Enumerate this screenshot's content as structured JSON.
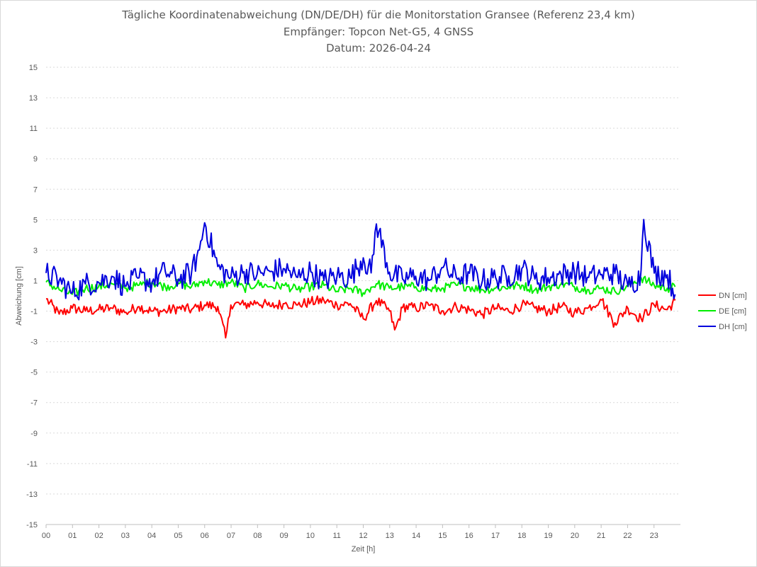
{
  "title_line1": "Tägliche Koordinatenabweichung (DN/DE/DH) für die Monitorstation Gransee (Referenz 23,4 km)",
  "title_line2": "Empfänger: Topcon Net-G5, 4 GNSS",
  "title_line3": "Datum: 2026-04-24",
  "chart_data": {
    "type": "line",
    "title": "Tägliche Koordinatenabweichung (DN/DE/DH) für die Monitorstation Gransee (Referenz 23,4 km)",
    "subtitle": [
      "Empfänger: Topcon Net-G5, 4 GNSS",
      "Datum: 2026-04-24"
    ],
    "xlabel": "Zeit [h]",
    "ylabel": "Abweichung [cm]",
    "ylim": [
      -15,
      15
    ],
    "yticks": [
      15,
      13,
      11,
      9,
      7,
      5,
      3,
      1,
      -1,
      -3,
      -5,
      -7,
      -9,
      -11,
      -13,
      -15
    ],
    "xlim": [
      0,
      24
    ],
    "xticks": [
      "00",
      "01",
      "02",
      "03",
      "04",
      "05",
      "06",
      "07",
      "08",
      "09",
      "10",
      "11",
      "12",
      "13",
      "14",
      "15",
      "16",
      "17",
      "18",
      "19",
      "20",
      "21",
      "22",
      "23"
    ],
    "grid": true,
    "legend_position": "right",
    "series": [
      {
        "name": "DN [cm]",
        "color": "#ff0000",
        "x": [
          0.0,
          0.5,
          1.0,
          1.5,
          2.0,
          2.5,
          3.0,
          3.5,
          4.0,
          4.5,
          5.0,
          5.5,
          6.0,
          6.5,
          6.8,
          7.0,
          7.5,
          8.0,
          8.5,
          9.0,
          9.5,
          10.0,
          10.5,
          11.0,
          11.5,
          12.0,
          12.5,
          13.0,
          13.2,
          13.5,
          14.0,
          14.5,
          15.0,
          15.5,
          16.0,
          16.5,
          17.0,
          17.5,
          18.0,
          18.5,
          19.0,
          19.5,
          20.0,
          20.5,
          21.0,
          21.5,
          22.0,
          22.5,
          23.0,
          23.5,
          23.8
        ],
        "y": [
          -0.2,
          -1.2,
          -0.8,
          -1.0,
          -0.9,
          -0.8,
          -1.1,
          -0.7,
          -1.0,
          -1.0,
          -0.8,
          -0.9,
          -0.6,
          -0.7,
          -2.8,
          -0.5,
          -0.6,
          -0.4,
          -0.7,
          -0.5,
          -0.6,
          -0.4,
          -0.3,
          -0.6,
          -0.5,
          -1.5,
          -0.3,
          -1.0,
          -2.3,
          -0.7,
          -0.8,
          -0.6,
          -1.0,
          -0.7,
          -0.9,
          -1.2,
          -0.8,
          -1.0,
          -0.6,
          -0.8,
          -1.0,
          -0.7,
          -1.1,
          -0.8,
          -0.2,
          -1.8,
          -0.8,
          -1.5,
          -0.6,
          -0.9,
          -0.3
        ]
      },
      {
        "name": "DE [cm]",
        "color": "#00ee00",
        "x": [
          0.0,
          0.5,
          1.0,
          1.5,
          2.0,
          2.5,
          3.0,
          3.5,
          4.0,
          4.5,
          5.0,
          5.5,
          6.0,
          6.5,
          7.0,
          7.5,
          8.0,
          8.5,
          9.0,
          9.5,
          10.0,
          10.5,
          11.0,
          11.5,
          12.0,
          12.5,
          13.0,
          13.5,
          14.0,
          14.5,
          15.0,
          15.5,
          16.0,
          16.5,
          17.0,
          17.5,
          18.0,
          18.5,
          19.0,
          19.5,
          20.0,
          20.5,
          21.0,
          21.5,
          22.0,
          22.5,
          23.0,
          23.5,
          23.8
        ],
        "y": [
          0.9,
          0.4,
          0.1,
          0.5,
          0.6,
          0.8,
          0.5,
          0.7,
          0.9,
          0.6,
          0.8,
          0.6,
          1.0,
          0.7,
          0.9,
          0.5,
          0.8,
          0.6,
          0.7,
          0.4,
          0.6,
          0.7,
          0.3,
          0.5,
          0.2,
          0.8,
          0.5,
          0.6,
          0.6,
          0.4,
          0.5,
          0.7,
          0.6,
          0.4,
          0.5,
          0.6,
          0.7,
          0.4,
          0.6,
          0.8,
          0.6,
          0.4,
          0.5,
          0.3,
          0.6,
          1.2,
          0.7,
          0.5,
          0.6
        ]
      },
      {
        "name": "DH [cm]",
        "color": "#0000dd",
        "x": [
          0.0,
          0.5,
          1.0,
          1.5,
          2.0,
          2.5,
          3.0,
          3.5,
          4.0,
          4.5,
          5.0,
          5.5,
          5.8,
          6.0,
          6.5,
          7.0,
          7.5,
          8.0,
          8.5,
          9.0,
          9.5,
          10.0,
          10.5,
          11.0,
          11.5,
          12.0,
          12.3,
          12.5,
          13.0,
          13.5,
          14.0,
          14.5,
          15.0,
          15.5,
          16.0,
          16.5,
          17.0,
          17.5,
          18.0,
          18.5,
          19.0,
          19.5,
          20.0,
          20.5,
          21.0,
          21.5,
          22.0,
          22.5,
          22.6,
          23.0,
          23.5,
          23.8
        ],
        "y": [
          1.5,
          1.0,
          0.2,
          0.8,
          0.9,
          1.3,
          0.6,
          1.2,
          0.9,
          1.6,
          1.1,
          1.5,
          3.0,
          4.8,
          1.9,
          1.2,
          1.6,
          1.4,
          1.6,
          1.8,
          1.2,
          1.6,
          1.0,
          1.3,
          1.2,
          2.5,
          1.5,
          4.8,
          1.5,
          1.1,
          1.3,
          1.0,
          1.9,
          1.2,
          1.5,
          1.0,
          1.2,
          1.3,
          1.8,
          1.1,
          1.2,
          1.4,
          1.6,
          1.2,
          1.4,
          1.5,
          0.6,
          1.3,
          5.1,
          1.5,
          1.4,
          0.1
        ]
      }
    ]
  }
}
